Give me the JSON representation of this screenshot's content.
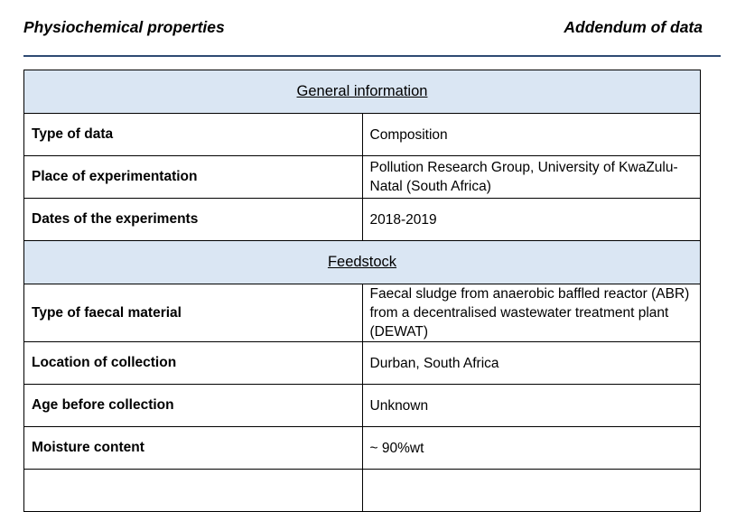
{
  "header": {
    "left": "Physiochemical properties",
    "right": "Addendum of data"
  },
  "sections": [
    {
      "title": "General information",
      "rows": [
        {
          "label": "Type of data",
          "value": "Composition"
        },
        {
          "label": "Place of experimentation",
          "value": "Pollution Research Group, University of KwaZulu-Natal (South Africa)"
        },
        {
          "label": "Dates of the experiments",
          "value": "2018-2019"
        }
      ]
    },
    {
      "title": "Feedstock",
      "rows": [
        {
          "label": "Type of faecal material",
          "value": "Faecal sludge from anaerobic baffled reactor (ABR) from a decentralised wastewater treatment plant (DEWAT)"
        },
        {
          "label": "Location of collection",
          "value": "Durban, South Africa"
        },
        {
          "label": "Age before collection",
          "value": "Unknown"
        },
        {
          "label": "Moisture content",
          "value": "~ 90%wt"
        }
      ]
    }
  ]
}
